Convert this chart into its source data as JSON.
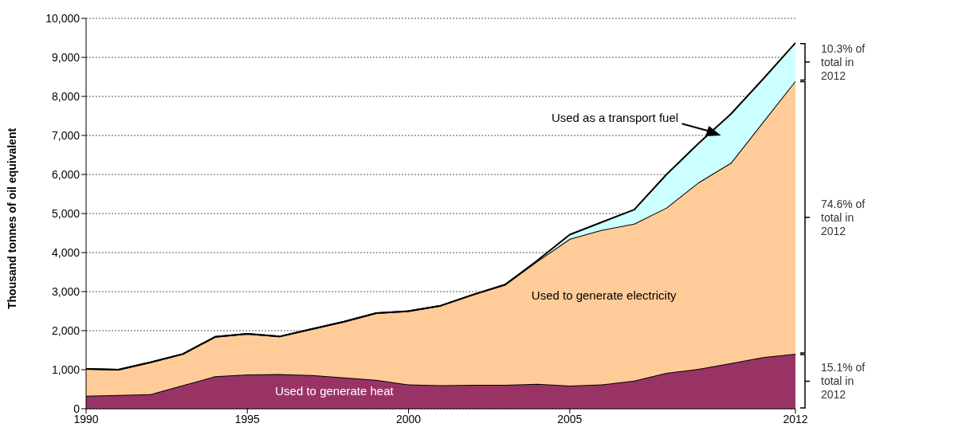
{
  "chart_data": {
    "type": "area",
    "stacked": true,
    "ylabel": "Thousand tonnes of oil equivalent",
    "x": [
      1990,
      1991,
      1992,
      1993,
      1994,
      1995,
      1996,
      1997,
      1998,
      1999,
      2000,
      2001,
      2002,
      2003,
      2004,
      2005,
      2006,
      2007,
      2008,
      2009,
      2010,
      2011,
      2012
    ],
    "series": [
      {
        "name": "Used to generate heat",
        "color": "#993366",
        "values": [
          330,
          350,
          370,
          600,
          830,
          880,
          890,
          860,
          800,
          740,
          620,
          600,
          610,
          610,
          640,
          590,
          620,
          720,
          920,
          1020,
          1170,
          1320,
          1410
        ]
      },
      {
        "name": "Used to generate electricity",
        "color": "#ffcc99",
        "values": [
          690,
          650,
          820,
          800,
          1010,
          1040,
          960,
          1180,
          1430,
          1710,
          1880,
          2040,
          2310,
          2570,
          3140,
          3760,
          3960,
          4020,
          4230,
          4780,
          5130,
          6030,
          6990
        ]
      },
      {
        "name": "Used as a transport fuel",
        "color": "#ccffff",
        "values": [
          0,
          0,
          0,
          0,
          0,
          0,
          0,
          0,
          0,
          0,
          0,
          0,
          0,
          0,
          20,
          110,
          200,
          360,
          850,
          1000,
          1250,
          1100,
          970
        ]
      }
    ],
    "xlim": [
      1990,
      2012
    ],
    "xticks": [
      1990,
      1995,
      2000,
      2005,
      2012
    ],
    "ylim": [
      0,
      10000
    ],
    "yticks": [
      {
        "value": 0,
        "label": "0"
      },
      {
        "value": 1000,
        "label": "1,000"
      },
      {
        "value": 2000,
        "label": "2,000"
      },
      {
        "value": 3000,
        "label": "3,000"
      },
      {
        "value": 4000,
        "label": "4,000"
      },
      {
        "value": 5000,
        "label": "5,000"
      },
      {
        "value": 6000,
        "label": "6,000"
      },
      {
        "value": 7000,
        "label": "7,000"
      },
      {
        "value": 8000,
        "label": "8,000"
      },
      {
        "value": 9000,
        "label": "9,000"
      },
      {
        "value": 10000,
        "label": "10,000"
      }
    ],
    "grid": "y",
    "annotations": [
      "15.1% of total in 2012",
      "74.6% of total in 2012",
      "10.3% of total in 2012"
    ]
  }
}
